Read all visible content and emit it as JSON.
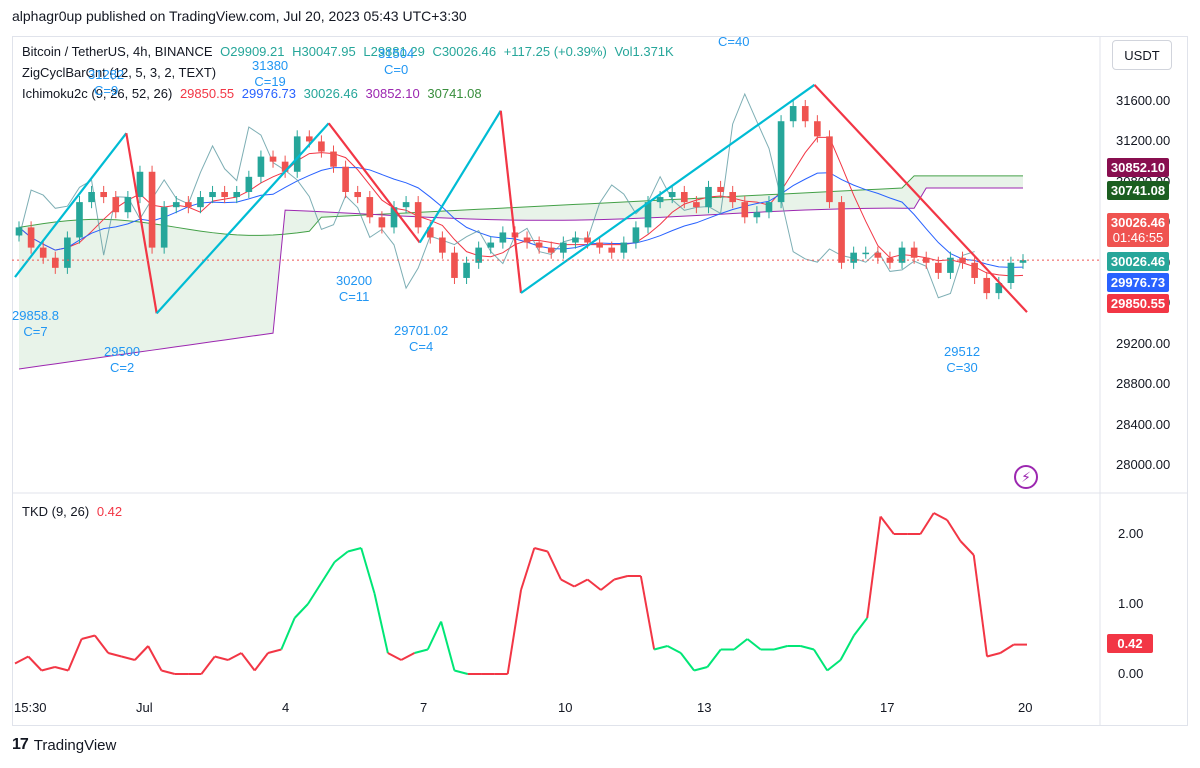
{
  "publisher": "alphagr0up published on TradingView.com, Jul 20, 2023 05:43 UTC+3:30",
  "footer_brand": "TradingView",
  "currency_button": "USDT",
  "legend": {
    "symbol": "Bitcoin / TetherUS, 4h, BINANCE",
    "o": "O29909.21",
    "h": "H30047.95",
    "l": "L29881.29",
    "c": "C30026.46",
    "change": "+117.25 (+0.39%)",
    "vol": "Vol1.371K",
    "zigzag": "ZigCyclBarCnt (12, 5, 3, 2, TEXT)",
    "ichimoku": "Ichimoku2c (9, 26, 52, 26)",
    "ich_v1": "29850.55",
    "ich_v2": "29976.73",
    "ich_v3": "30026.46",
    "ich_v4": "30852.10",
    "ich_v5": "30741.08",
    "tkd": "TKD (9, 26)",
    "tkd_value": "0.42"
  },
  "colors": {
    "up": "#26a69a",
    "down": "#ef5350",
    "zigzag_up": "#00bcd4",
    "zigzag_down": "#f23645",
    "tenkan": "#f23645",
    "kijun": "#2962ff",
    "chikou": "#5d9aa1",
    "spanA": "#43a047",
    "spanB": "#9c27b0",
    "tkd_up": "#00e676",
    "tkd_down": "#f23645"
  },
  "price_axis": [
    "31600.00",
    "31200.00",
    "30800.00",
    "30400.00",
    "30000.00",
    "29600.00",
    "29200.00",
    "28800.00",
    "28400.00",
    "28000.00"
  ],
  "price_badges": [
    {
      "text": "30852.10",
      "color": "#880e4f"
    },
    {
      "text": "30741.08",
      "color": "#1b5e20"
    },
    {
      "text": "30026.46",
      "color": "#ef5350",
      "sub": "01:46:55"
    },
    {
      "text": "30026.46",
      "color": "#26a69a"
    },
    {
      "text": "29976.73",
      "color": "#2962ff"
    },
    {
      "text": "29850.55",
      "color": "#f23645"
    }
  ],
  "tkd_axis": [
    "2.00",
    "1.00",
    "0.00"
  ],
  "tkd_badge": "0.42",
  "time_axis": [
    "15:30",
    "Jul",
    "4",
    "7",
    "10",
    "13",
    "17",
    "20"
  ],
  "zigzag_labels": [
    {
      "value": "29858.8",
      "count": "C=7"
    },
    {
      "value": "31282",
      "count": "C=9"
    },
    {
      "value": "29500",
      "count": "C=2"
    },
    {
      "value": "31380",
      "count": "C=19"
    },
    {
      "value": "30200",
      "count": "C=11"
    },
    {
      "value": "31504",
      "count": "C=0"
    },
    {
      "value": "29701.02",
      "count": "C=4"
    },
    {
      "value": "",
      "count": "C=40"
    },
    {
      "value": "29512",
      "count": "C=30"
    }
  ],
  "chart_data": {
    "type": "candlestick",
    "symbol": "BTC/USDT",
    "interval": "4h",
    "exchange": "BINANCE",
    "y_range": [
      27800,
      31900
    ],
    "x_ticks": [
      "15:30",
      "Jul",
      "4",
      "7",
      "10",
      "13",
      "17",
      "20"
    ],
    "zigzag_pivots": [
      {
        "t": 0,
        "p": 29858.8
      },
      {
        "t": 0.11,
        "p": 31282
      },
      {
        "t": 0.14,
        "p": 29500
      },
      {
        "t": 0.31,
        "p": 31380
      },
      {
        "t": 0.4,
        "p": 30200
      },
      {
        "t": 0.48,
        "p": 31504
      },
      {
        "t": 0.5,
        "p": 29701.02
      },
      {
        "t": 0.79,
        "p": 31760
      },
      {
        "t": 1,
        "p": 29512
      }
    ],
    "close_series": [
      30350,
      30150,
      30050,
      29950,
      30250,
      30600,
      30700,
      30650,
      30500,
      30650,
      30900,
      30150,
      30550,
      30600,
      30550,
      30650,
      30700,
      30650,
      30700,
      30850,
      31050,
      31000,
      30900,
      31250,
      31200,
      31100,
      30950,
      30700,
      30650,
      30450,
      30350,
      30550,
      30600,
      30350,
      30250,
      30100,
      29850,
      30000,
      30150,
      30200,
      30300,
      30250,
      30200,
      30150,
      30100,
      30200,
      30250,
      30200,
      30150,
      30100,
      30200,
      30350,
      30600,
      30650,
      30700,
      30600,
      30550,
      30750,
      30700,
      30600,
      30450,
      30500,
      30600,
      31400,
      31550,
      31400,
      31250,
      30600,
      30000,
      30100,
      30100,
      30050,
      30000,
      30150,
      30050,
      30000,
      29900,
      30050,
      30000,
      29850,
      29700,
      29800,
      30000,
      30026
    ],
    "ichimoku": {
      "tenkan": "29850.55",
      "kijun": "29976.73",
      "close": "30026.46",
      "spanA": "30852.10",
      "spanB": "30741.08"
    },
    "tkd": {
      "name": "TKD (9, 26)",
      "last": 0.42,
      "ylim": [
        -0.1,
        2.4
      ],
      "values": [
        0.15,
        0.25,
        0.05,
        0.1,
        0.05,
        0.5,
        0.55,
        0.3,
        0.25,
        0.2,
        0.4,
        0.05,
        0,
        0,
        0,
        0.25,
        0.2,
        0.3,
        0.05,
        0.3,
        0.35,
        0.8,
        1.0,
        1.3,
        1.6,
        1.75,
        1.8,
        1.15,
        0.3,
        0.2,
        0.3,
        0.35,
        0.75,
        0.05,
        0,
        0,
        0,
        0,
        1.2,
        1.8,
        1.75,
        1.35,
        1.25,
        1.35,
        1.2,
        1.35,
        1.4,
        1.4,
        0.35,
        0.4,
        0.3,
        0.05,
        0.1,
        0.35,
        0.35,
        0.5,
        0.35,
        0.35,
        0.4,
        0.4,
        0.35,
        0.05,
        0.2,
        0.55,
        0.8,
        2.25,
        2.0,
        2.0,
        2.0,
        2.3,
        2.2,
        1.9,
        1.7,
        0.25,
        0.3,
        0.42,
        0.42
      ]
    }
  }
}
